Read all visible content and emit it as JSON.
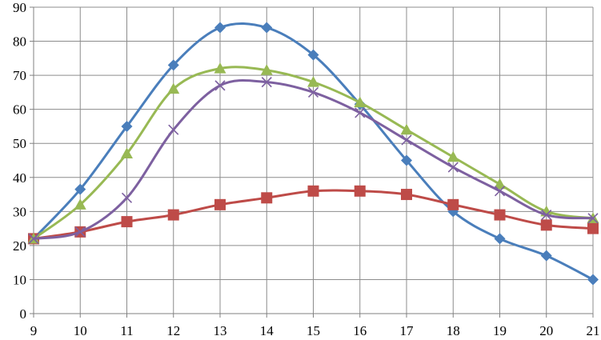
{
  "chart_data": {
    "type": "line",
    "title": "",
    "xlabel": "",
    "ylabel": "",
    "x": [
      9,
      10,
      11,
      12,
      13,
      14,
      15,
      16,
      17,
      18,
      19,
      20,
      21
    ],
    "xlim": [
      9,
      21
    ],
    "ylim": [
      0,
      90
    ],
    "y_ticks": [
      0,
      10,
      20,
      30,
      40,
      50,
      60,
      70,
      80,
      90
    ],
    "grid": true,
    "legend": "none",
    "smooth": true,
    "series": [
      {
        "color": "#4a7ebb",
        "marker": "diamond",
        "values": [
          22,
          36.5,
          55,
          73,
          84,
          84,
          76,
          61.5,
          45,
          30,
          22,
          17,
          10
        ]
      },
      {
        "color": "#be4b48",
        "marker": "square",
        "values": [
          22,
          24,
          27,
          29,
          32,
          34,
          36,
          36,
          35,
          32,
          29,
          26,
          25
        ]
      },
      {
        "color": "#98b954",
        "marker": "triangle",
        "values": [
          22,
          32,
          47,
          66,
          72,
          71.5,
          68,
          62,
          54,
          46,
          38,
          30,
          28
        ]
      },
      {
        "color": "#7d60a0",
        "marker": "x",
        "values": [
          22,
          24,
          34,
          54,
          67,
          68,
          65,
          59,
          51,
          43,
          36,
          29,
          28
        ]
      }
    ]
  }
}
